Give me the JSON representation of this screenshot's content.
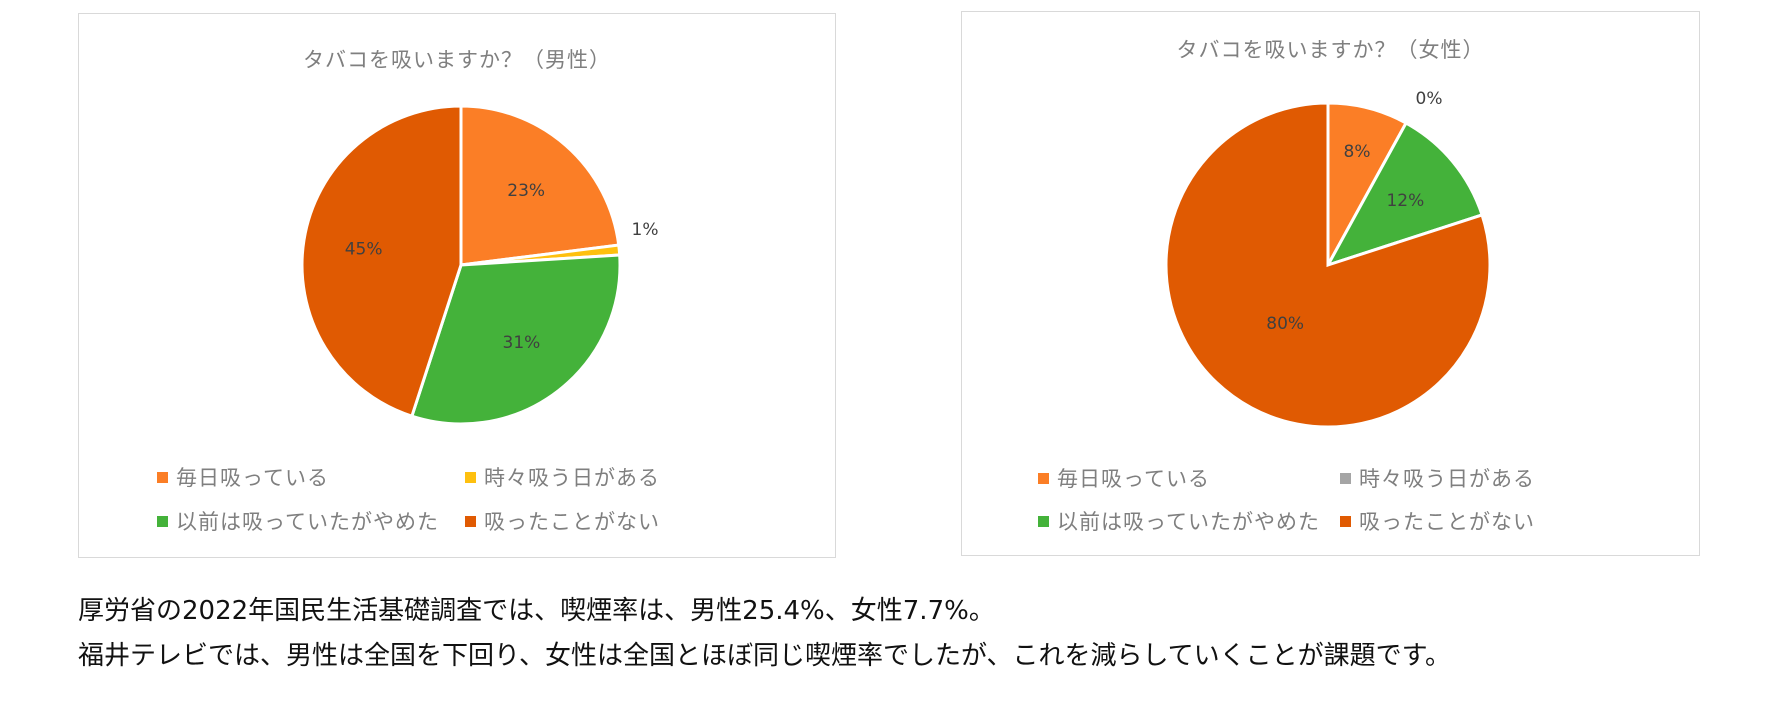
{
  "colors": {
    "daily": "#fb7e26",
    "sometimes_male": "#fec00f",
    "sometimes_female": "#a5a5a5",
    "quit": "#44b23a",
    "never": "#e05a02",
    "label_text": "#404040",
    "outside_label_text": "#404040"
  },
  "chart_data": [
    {
      "type": "pie",
      "title": "タバコを吸いますか？（男性）",
      "categories": [
        "毎日吸っている",
        "時々吸う日がある",
        "以前は吸っていたがやめた",
        "吸ったことがない"
      ],
      "values": [
        23,
        1,
        31,
        45
      ],
      "data_labels": [
        "23%",
        "1%",
        "31%",
        "45%"
      ],
      "legend_position": "bottom"
    },
    {
      "type": "pie",
      "title": "タバコを吸いますか？（女性）",
      "categories": [
        "毎日吸っている",
        "時々吸う日がある",
        "以前は吸っていたがやめた",
        "吸ったことがない"
      ],
      "values": [
        8,
        0,
        12,
        80
      ],
      "data_labels": [
        "8%",
        "0%",
        "12%",
        "80%"
      ],
      "legend_position": "bottom"
    }
  ],
  "caption": {
    "line1": "厚労省の2022年国民生活基礎調査では、喫煙率は、男性25.4%、女性7.7%。",
    "line2": "福井テレビでは、男性は全国を下回り、女性は全国とほぼ同じ喫煙率でしたが、これを減らしていくことが課題です。"
  }
}
